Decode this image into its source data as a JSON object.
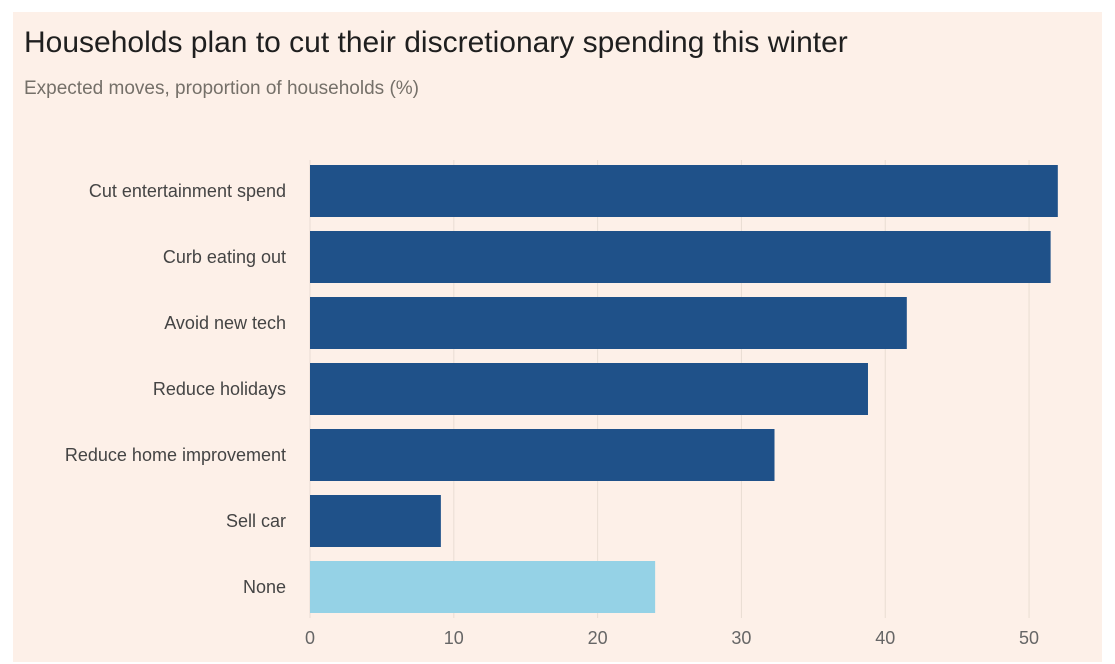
{
  "chart_data": {
    "type": "bar",
    "orientation": "horizontal",
    "title": "Households plan to cut their discretionary spending this winter",
    "subtitle": "Expected moves, proportion of households (%)",
    "xlabel": "",
    "ylabel": "",
    "categories": [
      "Cut entertainment spend",
      "Curb eating out",
      "Avoid new tech",
      "Reduce holidays",
      "Reduce home improvement",
      "Sell car",
      "None"
    ],
    "values": [
      52,
      51.5,
      41.5,
      38.8,
      32.3,
      9.1,
      24
    ],
    "bar_colors": [
      "#1f5189",
      "#1f5189",
      "#1f5189",
      "#1f5189",
      "#1f5189",
      "#1f5189",
      "#95d2e6"
    ],
    "xlim": [
      0,
      52.5
    ],
    "xticks": [
      0,
      10,
      20,
      30,
      40,
      50
    ],
    "grid": "vertical"
  },
  "colors": {
    "background": "#fdf0e8",
    "bar_primary": "#1f5189",
    "bar_highlight": "#95d2e6",
    "gridline": "#e9ddd3"
  }
}
